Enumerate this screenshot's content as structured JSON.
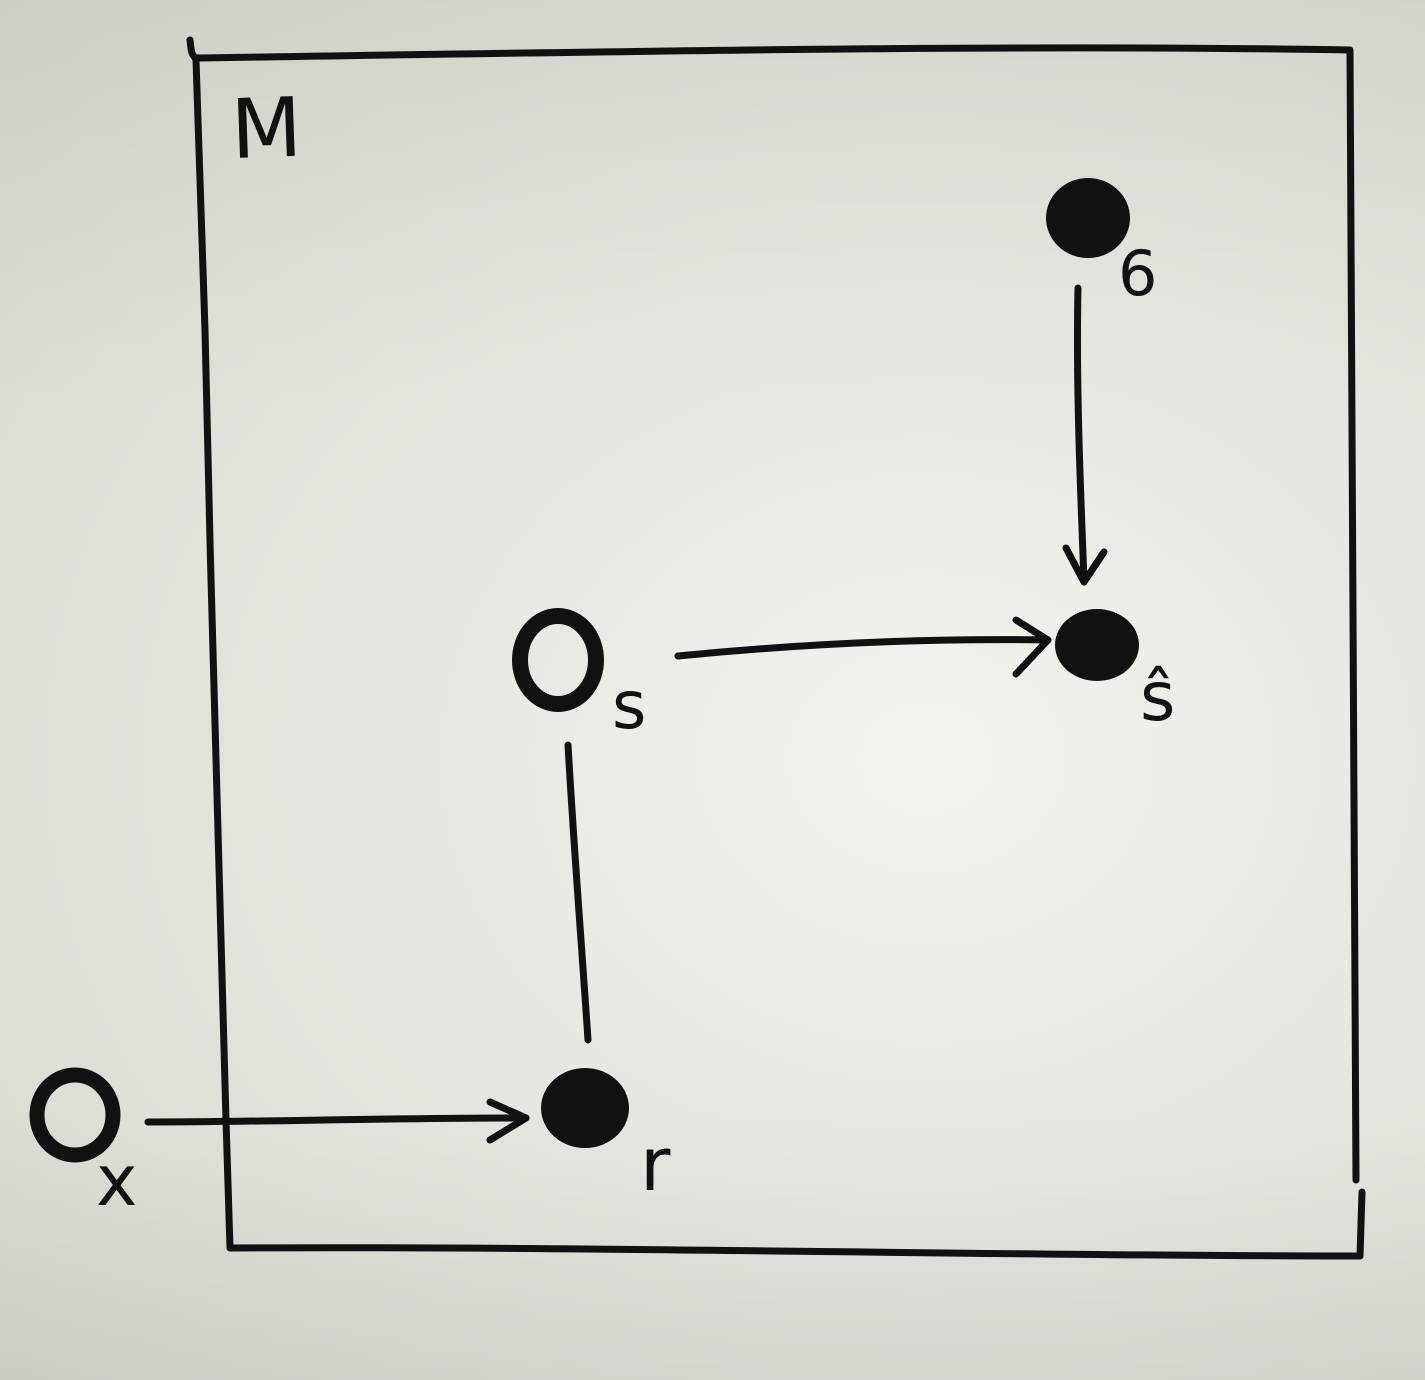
{
  "plate": {
    "label": "M"
  },
  "nodes": [
    {
      "id": "sigma",
      "label": "6",
      "kind": "observed"
    },
    {
      "id": "s_hat",
      "label": "ŝ",
      "kind": "observed"
    },
    {
      "id": "s",
      "label": "s",
      "kind": "latent"
    },
    {
      "id": "r",
      "label": "r",
      "kind": "observed"
    },
    {
      "id": "x",
      "label": "x",
      "kind": "latent"
    }
  ],
  "edges": [
    {
      "from": "sigma",
      "to": "s_hat",
      "directed": true
    },
    {
      "from": "s",
      "to": "s_hat",
      "directed": true
    },
    {
      "from": "s",
      "to": "r",
      "directed": false
    },
    {
      "from": "x",
      "to": "r",
      "directed": true
    }
  ],
  "colors": {
    "ink": "#111111",
    "paper": "#e8e7e1"
  }
}
